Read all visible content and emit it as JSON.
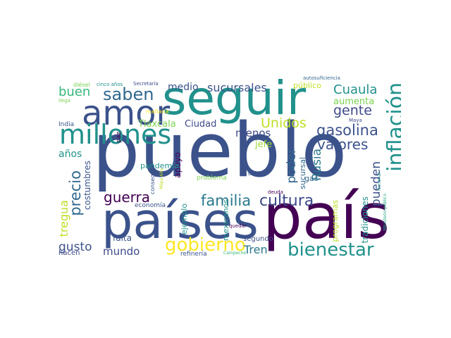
{
  "words": [
    {
      "text": "pueblo",
      "color": "#3b528b"
    },
    {
      "text": "país",
      "color": "#440154"
    },
    {
      "text": "países",
      "color": "#3b528b"
    },
    {
      "text": "seguir",
      "color": "#21918c"
    },
    {
      "text": "amor",
      "color": "#3b528b"
    },
    {
      "text": "millones",
      "color": "#21918c"
    },
    {
      "text": "inflación",
      "color": "#21918c"
    },
    {
      "text": "bienestar",
      "color": "#21918c"
    },
    {
      "text": "gobierno",
      "color": "#fde725"
    },
    {
      "text": "cultura",
      "color": "#3e4989"
    },
    {
      "text": "familia",
      "color": "#2a788e"
    },
    {
      "text": "gasolina",
      "color": "#3b528b"
    },
    {
      "text": "precio",
      "color": "#31688e"
    },
    {
      "text": "saben",
      "color": "#31688e"
    },
    {
      "text": "guerra",
      "color": "#440154"
    },
    {
      "text": "valores",
      "color": "#3b528b"
    },
    {
      "text": "Cuaula",
      "color": "#21918c"
    },
    {
      "text": "gente",
      "color": "#3e4989"
    },
    {
      "text": "Unidos",
      "color": "#bddf26"
    },
    {
      "text": "sucursales",
      "color": "#3b528b"
    },
    {
      "text": "buen",
      "color": "#35b779"
    },
    {
      "text": "Rusia",
      "color": "#2a788e"
    },
    {
      "text": "poder",
      "color": "#31688e"
    },
    {
      "text": "pueden",
      "color": "#3b528b"
    },
    {
      "text": "gusto",
      "color": "#3b528b"
    },
    {
      "text": "mundo",
      "color": "#3e4989"
    },
    {
      "text": "Tren",
      "color": "#2a788e"
    },
    {
      "text": "tregua",
      "color": "#bddf26"
    },
    {
      "text": "menos",
      "color": "#3e4989"
    },
    {
      "text": "medio",
      "color": "#3b528b"
    },
    {
      "text": "aumenta",
      "color": "#7ad151"
    },
    {
      "text": "años",
      "color": "#21918c"
    },
    {
      "text": "Tlaxcala",
      "color": "#7ad151"
    },
    {
      "text": "Ciudad",
      "color": "#3e4989"
    },
    {
      "text": "jefe",
      "color": "#a0da39"
    },
    {
      "text": "costumbres",
      "color": "#3b528b"
    },
    {
      "text": "apoyo",
      "color": "#440154"
    },
    {
      "text": "falta",
      "color": "#3b528b"
    },
    {
      "text": "tradiciones",
      "color": "#21918c"
    },
    {
      "text": "sucursal",
      "color": "#31688e"
    },
    {
      "text": "programas",
      "color": "#bddf26"
    },
    {
      "text": "mexicanos",
      "color": "#21918c"
    },
    {
      "text": "ejemplo",
      "color": "#21918c"
    },
    {
      "text": "pandemia",
      "color": "#21918c"
    },
    {
      "text": "gas",
      "color": "#31688e"
    },
    {
      "text": "público",
      "color": "#bddf26"
    },
    {
      "text": "hacen",
      "color": "#3e4989"
    },
    {
      "text": "segundo",
      "color": "#3b528b"
    },
    {
      "text": "refinería",
      "color": "#3b528b"
    },
    {
      "text": "economía",
      "color": "#3b528b"
    },
    {
      "text": "paz",
      "color": "#440154"
    },
    {
      "text": "India",
      "color": "#3b528b"
    },
    {
      "text": "problema",
      "color": "#7ad151"
    },
    {
      "text": "conseguir",
      "color": "#3b528b"
    },
    {
      "text": "mañana",
      "color": "#fde725"
    },
    {
      "text": "obras",
      "color": "#3b528b"
    },
    {
      "text": "deuda",
      "color": "#440154"
    },
    {
      "text": "quedar",
      "color": "#440154"
    },
    {
      "text": "autosuficiencia",
      "color": "#31688e"
    },
    {
      "text": "Maya",
      "color": "#3e4989"
    },
    {
      "text": "diésel",
      "color": "#7ad151"
    },
    {
      "text": "cinco años",
      "color": "#21918c"
    },
    {
      "text": "Secretaría",
      "color": "#3e4989"
    },
    {
      "text": "llega",
      "color": "#7ad151"
    },
    {
      "text": "Milpa Alta",
      "color": "#bddf26"
    },
    {
      "text": "Campeche",
      "color": "#35b779"
    },
    {
      "text": "Nacional",
      "color": "#21918c"
    },
    {
      "text": "Ministerio público",
      "color": "#22a884"
    }
  ]
}
